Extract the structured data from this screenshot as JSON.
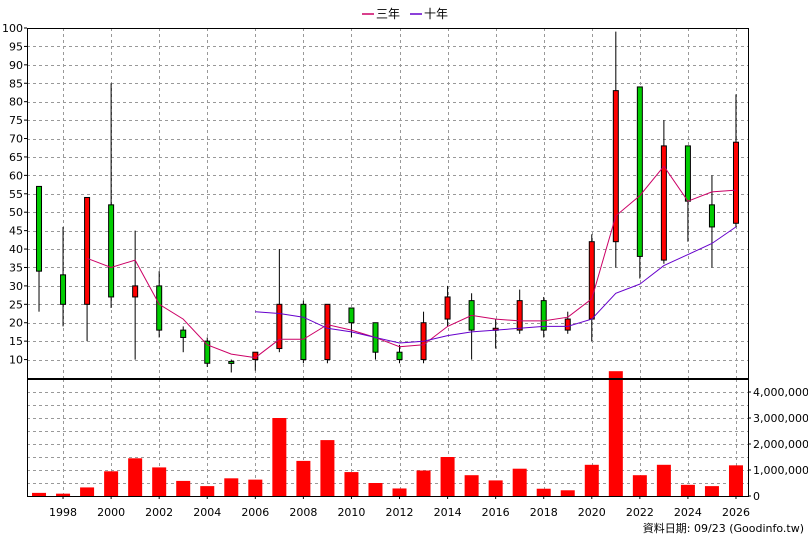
{
  "chart_data": [
    {
      "type": "candlestick",
      "legend": {
        "position": "top-center",
        "items": [
          {
            "name": "三年",
            "color": "#cc0066"
          },
          {
            "name": "十年",
            "color": "#6600cc"
          }
        ]
      },
      "ylim": [
        5,
        100
      ],
      "yticks": [
        10,
        15,
        20,
        25,
        30,
        35,
        40,
        45,
        50,
        55,
        60,
        65,
        70,
        75,
        80,
        85,
        90,
        95,
        100
      ],
      "grid": true,
      "up_color": "#ff0000",
      "down_color": "#00cc00",
      "candles": [
        {
          "year": 1997,
          "open": 57,
          "close": 34,
          "high": 57,
          "low": 23
        },
        {
          "year": 1998,
          "open": 33,
          "close": 25,
          "high": 46,
          "low": 19
        },
        {
          "year": 1999,
          "open": 25,
          "close": 54,
          "high": 54,
          "low": 15
        },
        {
          "year": 2000,
          "open": 52,
          "close": 27,
          "high": 85,
          "low": 24
        },
        {
          "year": 2001,
          "open": 27,
          "close": 30,
          "high": 45,
          "low": 10
        },
        {
          "year": 2002,
          "open": 30,
          "close": 18,
          "high": 34,
          "low": 16
        },
        {
          "year": 2003,
          "open": 18,
          "close": 16,
          "high": 19,
          "low": 12
        },
        {
          "year": 2004,
          "open": 15,
          "close": 9,
          "high": 16,
          "low": 8
        },
        {
          "year": 2005,
          "open": 9.5,
          "close": 9,
          "high": 10,
          "low": 6.5
        },
        {
          "year": 2006,
          "open": 10,
          "close": 12,
          "high": 12,
          "low": 7
        },
        {
          "year": 2007,
          "open": 13,
          "close": 25,
          "high": 40,
          "low": 12
        },
        {
          "year": 2008,
          "open": 25,
          "close": 10,
          "high": 26,
          "low": 9
        },
        {
          "year": 2009,
          "open": 10,
          "close": 25,
          "high": 25,
          "low": 9
        },
        {
          "year": 2010,
          "open": 24,
          "close": 20,
          "high": 24,
          "low": 16
        },
        {
          "year": 2011,
          "open": 20,
          "close": 12,
          "high": 20,
          "low": 10
        },
        {
          "year": 2012,
          "open": 12,
          "close": 10,
          "high": 14,
          "low": 9
        },
        {
          "year": 2013,
          "open": 10,
          "close": 20,
          "high": 23,
          "low": 9
        },
        {
          "year": 2014,
          "open": 21,
          "close": 27,
          "high": 30,
          "low": 19
        },
        {
          "year": 2015,
          "open": 26,
          "close": 18,
          "high": 28,
          "low": 10
        },
        {
          "year": 2016,
          "open": 18,
          "close": 18.5,
          "high": 21,
          "low": 13
        },
        {
          "year": 2017,
          "open": 18,
          "close": 26,
          "high": 29,
          "low": 17
        },
        {
          "year": 2018,
          "open": 26,
          "close": 18,
          "high": 27,
          "low": 16
        },
        {
          "year": 2019,
          "open": 18,
          "close": 21,
          "high": 23,
          "low": 17
        },
        {
          "year": 2020,
          "open": 21,
          "close": 42,
          "high": 44,
          "low": 15
        },
        {
          "year": 2021,
          "open": 42,
          "close": 83,
          "high": 99,
          "low": 35
        },
        {
          "year": 2022,
          "open": 84,
          "close": 38,
          "high": 84,
          "low": 32
        },
        {
          "year": 2023,
          "open": 37,
          "close": 68,
          "high": 75,
          "low": 36
        },
        {
          "year": 2024,
          "open": 68,
          "close": 53,
          "high": 68,
          "low": 42
        },
        {
          "year": 2025,
          "open": 52,
          "close": 46,
          "high": 60,
          "low": 35
        },
        {
          "year": 2026,
          "open": 47,
          "close": 69,
          "high": 82,
          "low": 46
        }
      ],
      "series": [
        {
          "name": "三年",
          "color": "#cc0066",
          "points": [
            [
              1999,
              37.5
            ],
            [
              2000,
              35
            ],
            [
              2001,
              37
            ],
            [
              2002,
              25
            ],
            [
              2003,
              21
            ],
            [
              2004,
              14
            ],
            [
              2005,
              11.5
            ],
            [
              2006,
              10.5
            ],
            [
              2007,
              15.5
            ],
            [
              2008,
              15.5
            ],
            [
              2009,
              19.5
            ],
            [
              2010,
              18
            ],
            [
              2011,
              16
            ],
            [
              2012,
              13.5
            ],
            [
              2013,
              14
            ],
            [
              2014,
              19
            ],
            [
              2015,
              22
            ],
            [
              2016,
              21
            ],
            [
              2017,
              20.5
            ],
            [
              2018,
              20.5
            ],
            [
              2019,
              21.5
            ],
            [
              2020,
              26.5
            ],
            [
              2021,
              49
            ],
            [
              2022,
              54.5
            ],
            [
              2023,
              62.5
            ],
            [
              2024,
              53
            ],
            [
              2025,
              55.5
            ],
            [
              2026,
              56
            ]
          ]
        },
        {
          "name": "十年",
          "color": "#6600cc",
          "points": [
            [
              2006,
              23
            ],
            [
              2007,
              22.5
            ],
            [
              2008,
              21.5
            ],
            [
              2009,
              18.5
            ],
            [
              2010,
              17.5
            ],
            [
              2011,
              16
            ],
            [
              2012,
              14.5
            ],
            [
              2013,
              15
            ],
            [
              2014,
              16.5
            ],
            [
              2015,
              17.5
            ],
            [
              2016,
              18
            ],
            [
              2017,
              18.5
            ],
            [
              2018,
              19
            ],
            [
              2019,
              19
            ],
            [
              2020,
              21
            ],
            [
              2021,
              28
            ],
            [
              2022,
              30.5
            ],
            [
              2023,
              35.5
            ],
            [
              2024,
              38.5
            ],
            [
              2025,
              41.5
            ],
            [
              2026,
              46
            ]
          ]
        }
      ]
    },
    {
      "type": "bar",
      "ylim": [
        0,
        4500000
      ],
      "yticks": [
        0,
        1000000,
        2000000,
        3000000,
        4000000
      ],
      "ytick_labels": [
        "0",
        "1,000,000",
        "2,000,000",
        "3,000,000",
        "4,000,000"
      ],
      "color": "#ff0000",
      "x": [
        1997,
        1998,
        1999,
        2000,
        2001,
        2002,
        2003,
        2004,
        2005,
        2006,
        2007,
        2008,
        2009,
        2010,
        2011,
        2012,
        2013,
        2014,
        2015,
        2016,
        2017,
        2018,
        2019,
        2020,
        2021,
        2022,
        2023,
        2024,
        2025,
        2026
      ],
      "values": [
        120000,
        90000,
        330000,
        950000,
        1450000,
        1100000,
        580000,
        380000,
        680000,
        630000,
        3000000,
        1350000,
        2150000,
        920000,
        500000,
        290000,
        980000,
        1500000,
        800000,
        600000,
        1050000,
        280000,
        220000,
        1200000,
        4800000,
        800000,
        1200000,
        430000,
        380000,
        1180000
      ]
    }
  ],
  "xaxis": {
    "tick_labels": [
      "1998",
      "2000",
      "2002",
      "2004",
      "2006",
      "2008",
      "2010",
      "2012",
      "2014",
      "2016",
      "2018",
      "2020",
      "2022",
      "2024",
      "2026"
    ]
  },
  "credit": "資料日期: 09/23  (Goodinfo.tw)"
}
